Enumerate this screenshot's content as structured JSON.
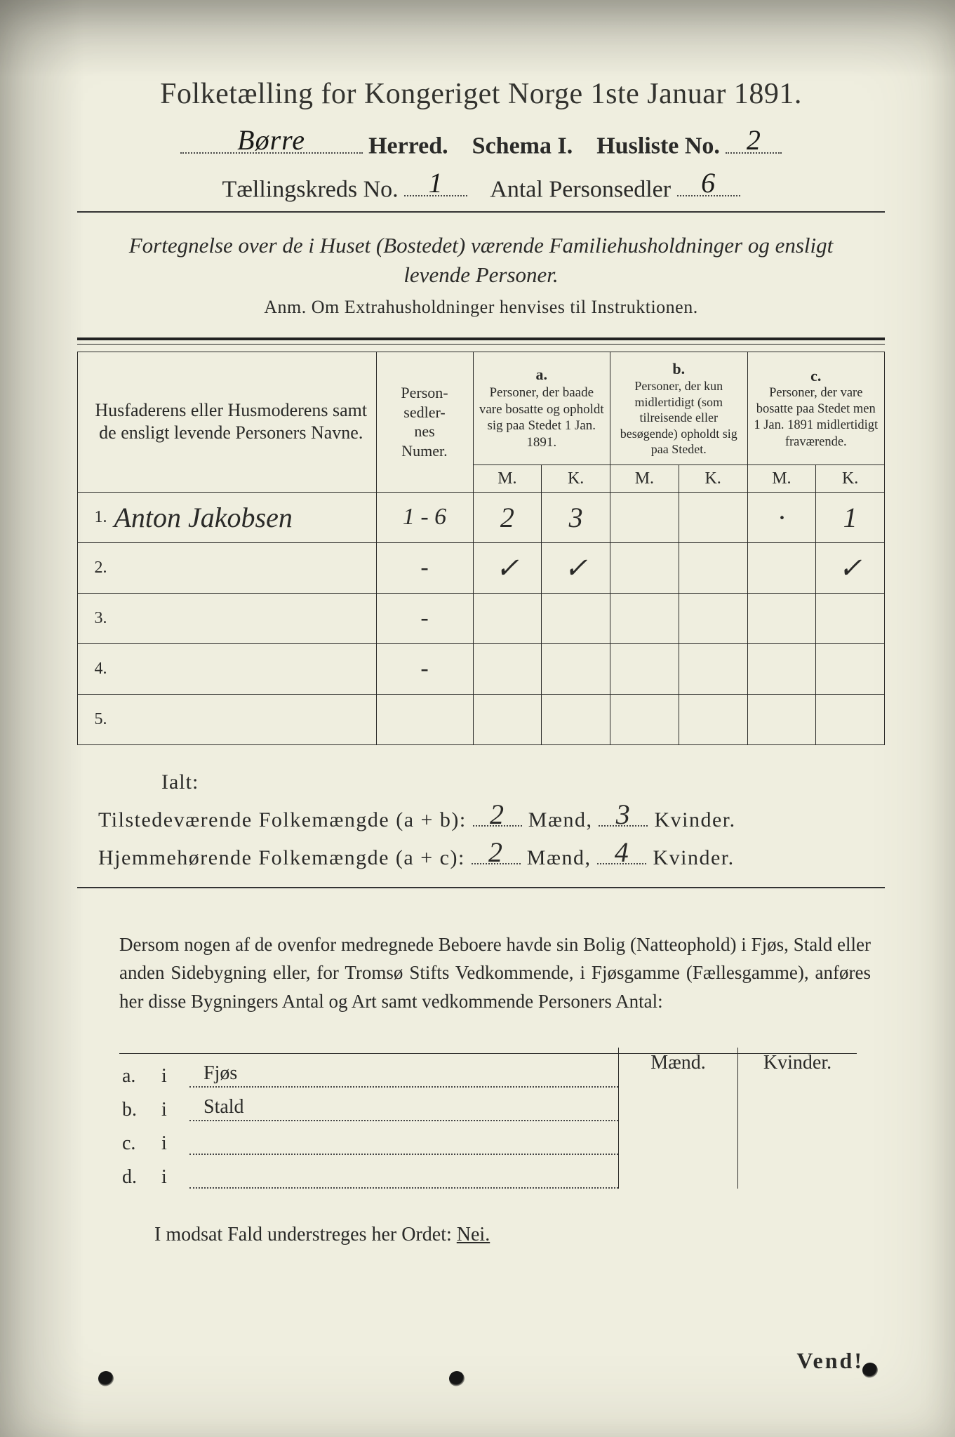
{
  "colors": {
    "paper": "#efeedf",
    "ink": "#2a2a28",
    "handwriting": "#1a1a18",
    "border": "#2a2a28",
    "dotted": "#444444",
    "page_bg": "#3a3a3a"
  },
  "header": {
    "title": "Folketælling for Kongeriget Norge 1ste Januar 1891.",
    "herred_printed": "Herred.",
    "herred_value": "Børre",
    "schema": "Schema I.",
    "husliste_label": "Husliste No.",
    "husliste_value": "2",
    "kreds_label": "Tællingskreds No.",
    "kreds_value": "1",
    "antal_label": "Antal Personsedler",
    "antal_value": "6"
  },
  "subheading": {
    "line": "Fortegnelse over de i Huset (Bostedet) værende Familiehusholdninger og ensligt levende Personer.",
    "anm": "Anm.  Om Extrahusholdninger henvises til Instruktionen."
  },
  "table": {
    "col_widths_pct": [
      4,
      33,
      12,
      8.5,
      8.5,
      8.5,
      8.5,
      8.5,
      8.5
    ],
    "head": {
      "names": "Husfaderens eller Husmoderens samt de ensligt levende Personers Navne.",
      "numer": "Person-\nsedler-\nnes\nNumer.",
      "a_label": "a.",
      "a_text": "Personer, der baade vare bosatte og opholdt sig paa Stedet 1 Jan. 1891.",
      "b_label": "b.",
      "b_text": "Personer, der kun midlertidigt (som tilreisende eller besøgende) opholdt sig paa Stedet.",
      "c_label": "c.",
      "c_text": "Personer, der vare bosatte paa Stedet men 1 Jan. 1891 midlertidigt fraværende.",
      "M": "M.",
      "K": "K."
    },
    "rows": [
      {
        "n": "1.",
        "name": "Anton Jakobsen",
        "numer": "1 - 6",
        "aM": "2",
        "aK": "3",
        "bM": "",
        "bK": "",
        "cM": "·",
        "cK": "1"
      },
      {
        "n": "2.",
        "name": "",
        "numer": "-",
        "aM": "✓",
        "aK": "✓",
        "bM": "",
        "bK": "",
        "cM": "",
        "cK": "✓"
      },
      {
        "n": "3.",
        "name": "",
        "numer": "-",
        "aM": "",
        "aK": "",
        "bM": "",
        "bK": "",
        "cM": "",
        "cK": ""
      },
      {
        "n": "4.",
        "name": "",
        "numer": "-",
        "aM": "",
        "aK": "",
        "bM": "",
        "bK": "",
        "cM": "",
        "cK": ""
      },
      {
        "n": "5.",
        "name": "",
        "numer": "",
        "aM": "",
        "aK": "",
        "bM": "",
        "bK": "",
        "cM": "",
        "cK": ""
      }
    ]
  },
  "totals": {
    "ialt": "Ialt:",
    "line1_label": "Tilstedeværende Folkemængde (a + b):",
    "line1_m": "2",
    "line1_k": "3",
    "line2_label": "Hjemmehørende Folkemængde (a + c):",
    "line2_m": "2",
    "line2_k": "4",
    "maend": "Mænd,",
    "kvinder": "Kvinder."
  },
  "paragraph": "Dersom nogen af de ovenfor medregnede Beboere havde sin Bolig (Natteophold) i Fjøs, Stald eller anden Sidebygning eller, for Tromsø Stifts Vedkommende, i Fjøsgamme (Fællesgamme), anføres her disse Bygningers Antal og Art samt vedkommende Personers Antal:",
  "outbuildings": {
    "head_m": "Mænd.",
    "head_k": "Kvinder.",
    "rows": [
      {
        "lbl": "a.",
        "i": "i",
        "place": "Fjøs"
      },
      {
        "lbl": "b.",
        "i": "i",
        "place": "Stald"
      },
      {
        "lbl": "c.",
        "i": "i",
        "place": ""
      },
      {
        "lbl": "d.",
        "i": "i",
        "place": ""
      }
    ]
  },
  "final_line": "I modsat Fald understreges her Ordet: ",
  "final_nei": "Nei.",
  "vend": "Vend!"
}
